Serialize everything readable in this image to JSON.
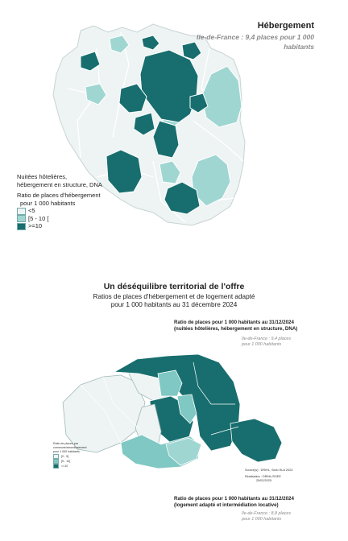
{
  "colors": {
    "low": "#eef3f3",
    "mid": "#9fd6d2",
    "high": "#186e6e",
    "border": "#ffffff"
  },
  "idf_map": {
    "title": "Hébergement",
    "subtitle_line1": "Ile-de-France : 9,4 places pour 1 000",
    "subtitle_line2": "habitants",
    "legend_caption": [
      "Nuitées hôtelières,",
      "hébergement en structure, DNA"
    ],
    "legend_title": [
      "Ratio de places d'hébergement",
      "pour 1 000 habitants"
    ],
    "legend_items": [
      {
        "label": "<5",
        "color": "#eef3f3"
      },
      {
        "label": "[5 - 10 [",
        "color": "#9fd6d2"
      },
      {
        "label": ">=10",
        "color": "#186e6e"
      }
    ]
  },
  "section": {
    "title": "Un déséquilibre territorial de l'offre",
    "subtitle_line1": "Ratios de places d'hébergement et de logement adapté",
    "subtitle_line2": "pour 1 000 habitants au 31 décembre 2024"
  },
  "paris_map": {
    "title_line1": "Ratio de places pour 1 000 habitants au 31/12/2024",
    "title_line2": "(nuitées hôtelières, hébergement en structure, DNA)",
    "idf_note_line1": "Ile-de-France : 9,4 places",
    "idf_note_line2": "pour 1 000 habitants",
    "legend_title": [
      "Ratio de places par",
      "commune/arrondissement",
      "pour 1 000 habitants :"
    ],
    "legend_items": [
      {
        "label": "[0 - 5[",
        "color": "#eef3f3"
      },
      {
        "label": "[5 - 10[",
        "color": "#7fc8c3"
      },
      {
        "label": ">=10",
        "color": "#186e6e"
      }
    ],
    "source_line1": "Source(s) : DRIHL, Siolo HLA 2024",
    "source_line2": "Réalisation : DRIHL/SOEE",
    "source_line3": "25/02/2025"
  },
  "second_block": {
    "title_line1": "Ratio de places pour 1 000 habitants au 31/12/2024",
    "title_line2": "(logement adapté et intermédiation locative)",
    "idf_note_line1": "Ile-de-France : 8,8 places",
    "idf_note_line2": "pour 1 000 habitants"
  }
}
